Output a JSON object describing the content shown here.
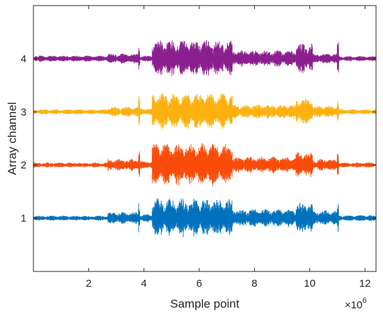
{
  "chart_data": {
    "type": "line",
    "title": "",
    "xlabel": "Sample point",
    "ylabel": "Array channel",
    "x_exponent_label": "×10",
    "x_exponent_power": "6",
    "xlim": [
      0,
      12.4
    ],
    "ylim": [
      0,
      5
    ],
    "x_ticks": [
      2,
      4,
      6,
      8,
      10,
      12
    ],
    "x_tick_labels": [
      "2",
      "4",
      "6",
      "8",
      "10",
      "12"
    ],
    "y_ticks": [
      1,
      2,
      3,
      4
    ],
    "y_tick_labels": [
      "1",
      "2",
      "3",
      "4"
    ],
    "grid": false,
    "series": [
      {
        "name": "",
        "channel": 1,
        "color": "#0072bd",
        "segments": [
          {
            "x_start": 0.0,
            "x_end": 2.7,
            "amplitude": 0.05
          },
          {
            "x_start": 2.7,
            "x_end": 3.8,
            "amplitude": 0.12
          },
          {
            "x_start": 3.8,
            "x_end": 3.85,
            "amplitude": 0.38
          },
          {
            "x_start": 3.85,
            "x_end": 4.3,
            "amplitude": 0.08
          },
          {
            "x_start": 4.3,
            "x_end": 7.2,
            "amplitude": 0.38
          },
          {
            "x_start": 7.2,
            "x_end": 9.5,
            "amplitude": 0.18
          },
          {
            "x_start": 9.5,
            "x_end": 10.1,
            "amplitude": 0.3
          },
          {
            "x_start": 10.1,
            "x_end": 11.0,
            "amplitude": 0.15
          },
          {
            "x_start": 11.0,
            "x_end": 11.05,
            "amplitude": 0.32
          },
          {
            "x_start": 11.05,
            "x_end": 12.4,
            "amplitude": 0.06
          }
        ]
      },
      {
        "name": "",
        "channel": 2,
        "color": "#f94c0a",
        "segments": [
          {
            "x_start": 0.0,
            "x_end": 2.7,
            "amplitude": 0.05
          },
          {
            "x_start": 2.7,
            "x_end": 3.8,
            "amplitude": 0.12
          },
          {
            "x_start": 3.8,
            "x_end": 3.85,
            "amplitude": 0.38
          },
          {
            "x_start": 3.85,
            "x_end": 4.3,
            "amplitude": 0.08
          },
          {
            "x_start": 4.3,
            "x_end": 7.2,
            "amplitude": 0.42
          },
          {
            "x_start": 7.2,
            "x_end": 9.5,
            "amplitude": 0.16
          },
          {
            "x_start": 9.5,
            "x_end": 10.1,
            "amplitude": 0.25
          },
          {
            "x_start": 10.1,
            "x_end": 11.0,
            "amplitude": 0.12
          },
          {
            "x_start": 11.0,
            "x_end": 11.05,
            "amplitude": 0.32
          },
          {
            "x_start": 11.05,
            "x_end": 12.4,
            "amplitude": 0.05
          }
        ]
      },
      {
        "name": "",
        "channel": 3,
        "color": "#fdb10f",
        "segments": [
          {
            "x_start": 0.0,
            "x_end": 2.7,
            "amplitude": 0.05
          },
          {
            "x_start": 2.7,
            "x_end": 3.8,
            "amplitude": 0.1
          },
          {
            "x_start": 3.8,
            "x_end": 3.85,
            "amplitude": 0.32
          },
          {
            "x_start": 3.85,
            "x_end": 4.3,
            "amplitude": 0.07
          },
          {
            "x_start": 4.3,
            "x_end": 7.2,
            "amplitude": 0.36
          },
          {
            "x_start": 7.2,
            "x_end": 9.5,
            "amplitude": 0.14
          },
          {
            "x_start": 9.5,
            "x_end": 10.1,
            "amplitude": 0.26
          },
          {
            "x_start": 10.1,
            "x_end": 11.0,
            "amplitude": 0.12
          },
          {
            "x_start": 11.0,
            "x_end": 11.05,
            "amplitude": 0.28
          },
          {
            "x_start": 11.05,
            "x_end": 12.4,
            "amplitude": 0.05
          }
        ]
      },
      {
        "name": "",
        "channel": 4,
        "color": "#8c1f90",
        "segments": [
          {
            "x_start": 0.0,
            "x_end": 2.7,
            "amplitude": 0.06
          },
          {
            "x_start": 2.7,
            "x_end": 3.8,
            "amplitude": 0.1
          },
          {
            "x_start": 3.8,
            "x_end": 3.85,
            "amplitude": 0.26
          },
          {
            "x_start": 3.85,
            "x_end": 4.3,
            "amplitude": 0.06
          },
          {
            "x_start": 4.3,
            "x_end": 7.2,
            "amplitude": 0.36
          },
          {
            "x_start": 7.2,
            "x_end": 9.5,
            "amplitude": 0.16
          },
          {
            "x_start": 9.5,
            "x_end": 10.1,
            "amplitude": 0.3
          },
          {
            "x_start": 10.1,
            "x_end": 11.0,
            "amplitude": 0.1
          },
          {
            "x_start": 11.0,
            "x_end": 11.05,
            "amplitude": 0.32
          },
          {
            "x_start": 11.05,
            "x_end": 12.4,
            "amplitude": 0.05
          }
        ]
      }
    ]
  }
}
